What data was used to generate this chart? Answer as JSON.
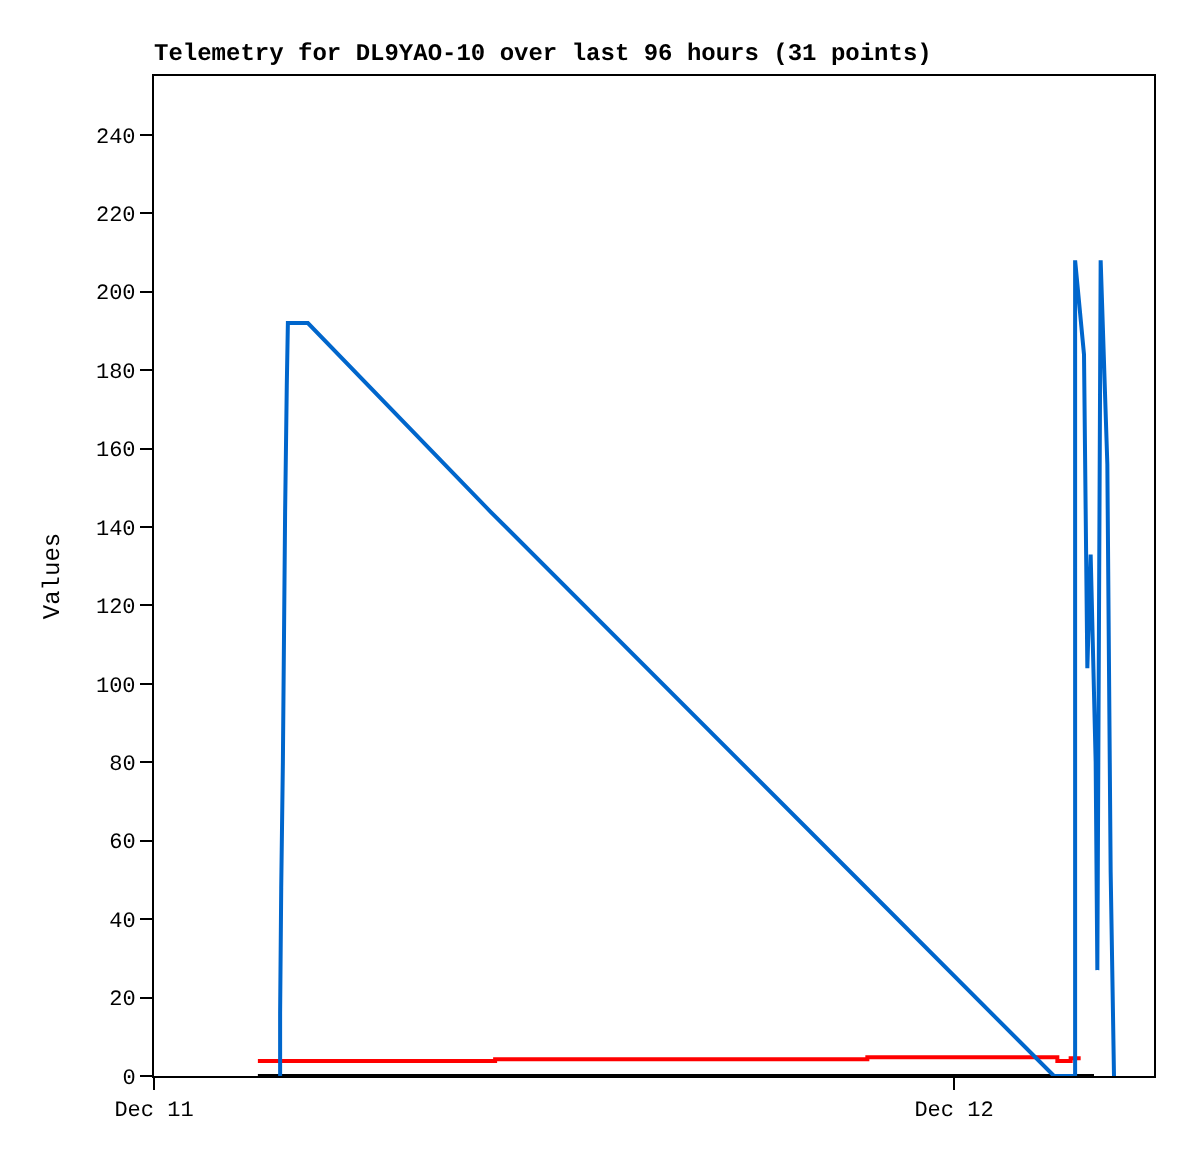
{
  "chart_data": {
    "type": "line",
    "title": "Telemetry for DL9YAO-10 over last 96 hours (31 points)",
    "ylabel": "Values",
    "xlim": [
      "--12-11T00:00",
      "--12-12T06:00"
    ],
    "xticks": [
      {
        "value": "--12-11",
        "label": "Dec 11"
      },
      {
        "value": "--12-12",
        "label": "Dec 12"
      }
    ],
    "ylim": [
      0,
      255
    ],
    "yticks": [
      0,
      20,
      40,
      60,
      80,
      100,
      120,
      140,
      160,
      180,
      200,
      220,
      240
    ],
    "marker": "none",
    "line_style": "solid",
    "series": [
      {
        "color": "#000000",
        "x": [
          "--12-11T03:07",
          "--12-12T04:12"
        ],
        "values": [
          0,
          0
        ]
      },
      {
        "type": "step",
        "color": "#ff0000",
        "x": [
          "--12-11T03:07",
          "--12-11T10:14",
          "--12-11T21:24",
          "--12-12T03:06",
          "--12-12T03:30",
          "--12-12T03:48"
        ],
        "values": [
          3.8,
          4.3,
          4.8,
          3.8,
          4.5,
          4.5
        ]
      },
      {
        "color": "#0066cc",
        "x": [
          "--12-11T03:47",
          "--12-11T03:47",
          "--12-11T03:49",
          "--12-11T03:52",
          "--12-11T03:54",
          "--12-11T03:56",
          "--12-11T03:59",
          "--12-11T04:01",
          "--12-11T04:37",
          "--12-11T10:05",
          "--12-11T21:22",
          "--12-12T03:00",
          "--12-12T03:38",
          "--12-12T03:38",
          "--12-12T03:54",
          "--12-12T04:00",
          "--12-12T04:06",
          "--12-12T04:15",
          "--12-12T04:18",
          "--12-12T04:24",
          "--12-12T04:36",
          "--12-12T04:42",
          "--12-12T04:48"
        ],
        "values": [
          0,
          16,
          48,
          80,
          112,
          144,
          176,
          192,
          192,
          144,
          48,
          0,
          0,
          208,
          184,
          104,
          133,
          80,
          27,
          208,
          156,
          52,
          0
        ]
      }
    ]
  }
}
